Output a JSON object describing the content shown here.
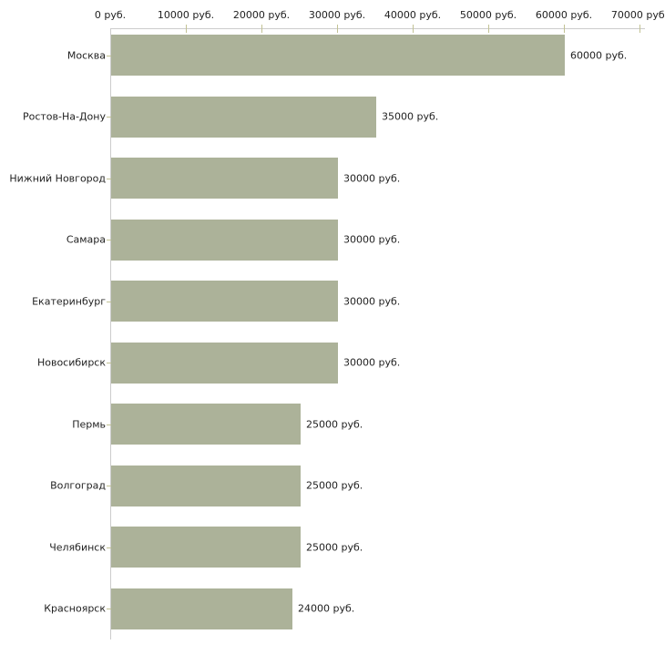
{
  "chart_data": {
    "type": "bar",
    "orientation": "horizontal",
    "title": "",
    "categories": [
      "Москва",
      "Ростов-На-Дону",
      "Нижний Новгород",
      "Самара",
      "Екатеринбург",
      "Новосибирск",
      "Пермь",
      "Волгоград",
      "Челябинск",
      "Красноярск"
    ],
    "values": [
      60000,
      35000,
      30000,
      30000,
      30000,
      30000,
      25000,
      25000,
      25000,
      24000
    ],
    "value_labels": [
      "60000 руб.",
      "35000 руб.",
      "30000 руб.",
      "30000 руб.",
      "30000 руб.",
      "30000 руб.",
      "25000 руб.",
      "25000 руб.",
      "25000 руб.",
      "24000 руб."
    ],
    "x_ticks": [
      0,
      10000,
      20000,
      30000,
      40000,
      50000,
      60000,
      70000
    ],
    "x_tick_labels": [
      "0 руб.",
      "10000 руб.",
      "20000 руб.",
      "30000 руб.",
      "40000 руб.",
      "50000 руб.",
      "60000 руб.",
      "70000 руб."
    ],
    "xlim": [
      0,
      70000
    ],
    "unit": "руб.",
    "legend": null,
    "grid": false,
    "colors": {
      "bar_fill": "#acb299",
      "axis_line": "#cccccc",
      "tick_mark": "#c2c294",
      "text": "#222222",
      "background": "#ffffff"
    }
  }
}
